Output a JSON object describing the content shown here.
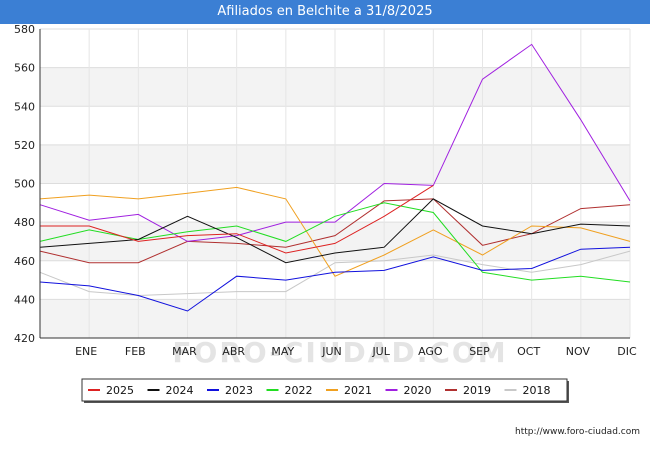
{
  "title": "Afiliados en Belchite a 31/8/2025",
  "source": "http://www.foro-ciudad.com",
  "watermark": "FORO-CIUDAD.COM",
  "chart_data": {
    "type": "line",
    "title": "Afiliados en Belchite a 31/8/2025",
    "xlabel": "",
    "ylabel": "",
    "ylim": [
      420,
      580
    ],
    "yticks": [
      420,
      440,
      460,
      480,
      500,
      520,
      540,
      560,
      580
    ],
    "categories": [
      "",
      "ENE",
      "FEB",
      "MAR",
      "ABR",
      "MAY",
      "JUN",
      "JUL",
      "AGO",
      "SEP",
      "OCT",
      "NOV",
      "DIC"
    ],
    "grid": "horizontal bands",
    "legend_position": "bottom",
    "series": [
      {
        "name": "2025",
        "color": "#dd2222",
        "values": [
          478,
          478,
          470,
          473,
          474,
          464,
          469,
          483,
          499,
          null,
          null,
          null,
          null
        ]
      },
      {
        "name": "2024",
        "color": "#111111",
        "values": [
          467,
          469,
          471,
          483,
          472,
          459,
          464,
          467,
          492,
          478,
          474,
          479,
          478
        ]
      },
      {
        "name": "2023",
        "color": "#1111dd",
        "values": [
          449,
          447,
          442,
          434,
          452,
          450,
          454,
          455,
          462,
          455,
          456,
          466,
          467
        ]
      },
      {
        "name": "2022",
        "color": "#22dd22",
        "values": [
          470,
          476,
          471,
          475,
          478,
          470,
          483,
          490,
          485,
          454,
          450,
          452,
          449
        ]
      },
      {
        "name": "2021",
        "color": "#f0a020",
        "values": [
          492,
          494,
          492,
          495,
          498,
          492,
          452,
          463,
          476,
          463,
          478,
          477,
          470
        ]
      },
      {
        "name": "2020",
        "color": "#a020e0",
        "values": [
          489,
          481,
          484,
          470,
          473,
          480,
          480,
          500,
          499,
          554,
          572,
          533,
          491
        ]
      },
      {
        "name": "2019",
        "color": "#b03030",
        "values": [
          465,
          459,
          459,
          470,
          469,
          467,
          473,
          491,
          492,
          468,
          474,
          487,
          489
        ]
      },
      {
        "name": "2018",
        "color": "#c8c8c8",
        "values": [
          454,
          444,
          442,
          443,
          444,
          444,
          459,
          460,
          463,
          458,
          454,
          458,
          465
        ]
      }
    ]
  }
}
